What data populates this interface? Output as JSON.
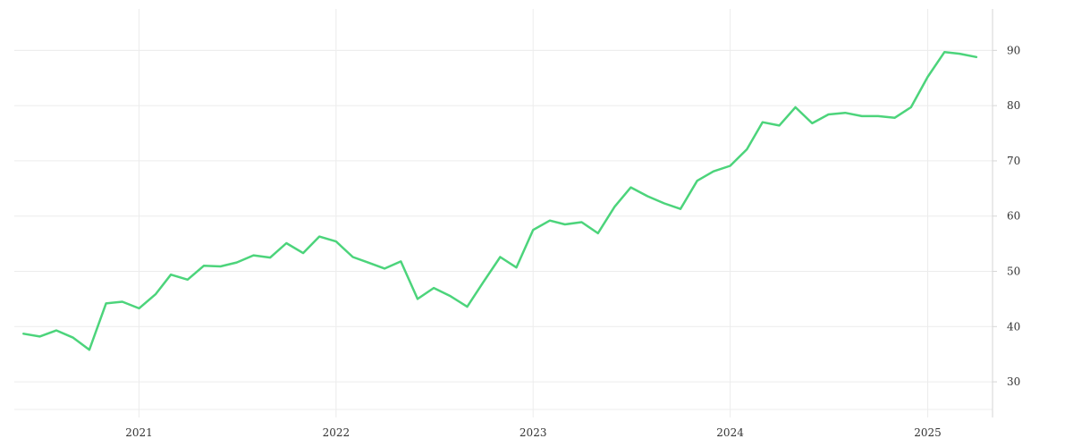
{
  "chart_data": {
    "type": "line",
    "title": "",
    "xlabel": "",
    "ylabel": "",
    "x_ticks": [
      "2021",
      "2022",
      "2023",
      "2024",
      "2025"
    ],
    "y_ticks": [
      30,
      40,
      50,
      60,
      70,
      80,
      90
    ],
    "xlim": [
      "2020-05-15",
      "2025-05-01"
    ],
    "ylim": [
      25,
      97.5
    ],
    "grid": true,
    "legend": "none",
    "y_axis_side": "right",
    "series": [
      {
        "color": "#4cd47b",
        "points": [
          [
            "2020-06-01",
            38.7
          ],
          [
            "2020-07-01",
            38.2
          ],
          [
            "2020-08-01",
            39.3
          ],
          [
            "2020-09-01",
            38.0
          ],
          [
            "2020-10-01",
            35.8
          ],
          [
            "2020-11-01",
            44.2
          ],
          [
            "2020-12-01",
            44.5
          ],
          [
            "2021-01-01",
            43.3
          ],
          [
            "2021-02-01",
            45.9
          ],
          [
            "2021-03-01",
            49.4
          ],
          [
            "2021-04-01",
            48.5
          ],
          [
            "2021-05-01",
            51.0
          ],
          [
            "2021-06-01",
            50.9
          ],
          [
            "2021-07-01",
            51.6
          ],
          [
            "2021-08-01",
            52.9
          ],
          [
            "2021-09-01",
            52.5
          ],
          [
            "2021-10-01",
            55.1
          ],
          [
            "2021-11-01",
            53.3
          ],
          [
            "2021-12-01",
            56.3
          ],
          [
            "2022-01-01",
            55.4
          ],
          [
            "2022-02-01",
            52.6
          ],
          [
            "2022-03-01",
            51.6
          ],
          [
            "2022-04-01",
            50.5
          ],
          [
            "2022-05-01",
            51.8
          ],
          [
            "2022-06-01",
            45.0
          ],
          [
            "2022-07-01",
            47.0
          ],
          [
            "2022-08-01",
            45.5
          ],
          [
            "2022-09-01",
            43.6
          ],
          [
            "2022-10-01",
            48.1
          ],
          [
            "2022-11-01",
            52.6
          ],
          [
            "2022-12-01",
            50.7
          ],
          [
            "2023-01-01",
            57.5
          ],
          [
            "2023-02-01",
            59.2
          ],
          [
            "2023-03-01",
            58.5
          ],
          [
            "2023-04-01",
            58.9
          ],
          [
            "2023-05-01",
            56.9
          ],
          [
            "2023-06-01",
            61.7
          ],
          [
            "2023-07-01",
            65.2
          ],
          [
            "2023-08-01",
            63.6
          ],
          [
            "2023-09-01",
            62.3
          ],
          [
            "2023-10-01",
            61.3
          ],
          [
            "2023-11-01",
            66.4
          ],
          [
            "2023-12-01",
            68.1
          ],
          [
            "2024-01-01",
            69.1
          ],
          [
            "2024-02-01",
            72.1
          ],
          [
            "2024-03-01",
            77.0
          ],
          [
            "2024-04-01",
            76.4
          ],
          [
            "2024-05-01",
            79.7
          ],
          [
            "2024-06-01",
            76.8
          ],
          [
            "2024-07-01",
            78.4
          ],
          [
            "2024-08-01",
            78.7
          ],
          [
            "2024-09-01",
            78.1
          ],
          [
            "2024-10-01",
            78.1
          ],
          [
            "2024-11-01",
            77.8
          ],
          [
            "2024-12-01",
            79.7
          ],
          [
            "2025-01-01",
            85.2
          ],
          [
            "2025-02-01",
            89.7
          ],
          [
            "2025-03-01",
            89.4
          ],
          [
            "2025-04-01",
            88.8
          ]
        ]
      }
    ]
  }
}
